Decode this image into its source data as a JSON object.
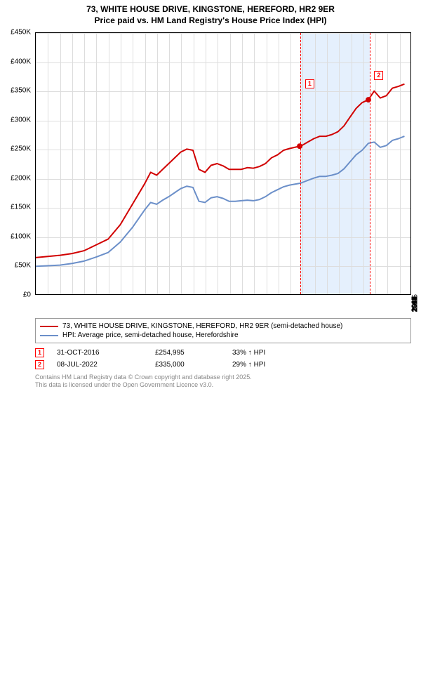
{
  "title_line1": "73, WHITE HOUSE DRIVE, KINGSTONE, HEREFORD, HR2 9ER",
  "title_line2": "Price paid vs. HM Land Registry's House Price Index (HPI)",
  "chart": {
    "type": "line",
    "background_color": "#ffffff",
    "grid_color": "#dddddd",
    "border_color": "#000000",
    "highlight_band_color": "rgba(223,236,252,0.8)",
    "yaxis": {
      "min": 0,
      "max": 450000,
      "step": 50000,
      "labels": [
        "£0",
        "£50K",
        "£100K",
        "£150K",
        "£200K",
        "£250K",
        "£300K",
        "£350K",
        "£400K",
        "£450K"
      ]
    },
    "xaxis": {
      "min": 1995,
      "max": 2026,
      "labels": [
        "1995",
        "1996",
        "1997",
        "1998",
        "1999",
        "2000",
        "2001",
        "2002",
        "2003",
        "2004",
        "2005",
        "2006",
        "2007",
        "2008",
        "2009",
        "2010",
        "2011",
        "2012",
        "2013",
        "2014",
        "2015",
        "2016",
        "2017",
        "2018",
        "2019",
        "2020",
        "2021",
        "2022",
        "2023",
        "2024",
        "2025"
      ]
    },
    "highlight_band": {
      "start_year": 2016.83,
      "end_year": 2022.52
    },
    "ref_lines": [
      {
        "year": 2016.83
      },
      {
        "year": 2022.52
      }
    ],
    "series": [
      {
        "name": "property",
        "color": "#d10000",
        "width": 2,
        "points": [
          [
            1995,
            63000
          ],
          [
            1996,
            65000
          ],
          [
            1997,
            67000
          ],
          [
            1998,
            70000
          ],
          [
            1999,
            75000
          ],
          [
            2000,
            85000
          ],
          [
            2001,
            95000
          ],
          [
            2002,
            120000
          ],
          [
            2003,
            155000
          ],
          [
            2004,
            190000
          ],
          [
            2004.5,
            210000
          ],
          [
            2005,
            205000
          ],
          [
            2005.5,
            215000
          ],
          [
            2006,
            225000
          ],
          [
            2006.5,
            235000
          ],
          [
            2007,
            245000
          ],
          [
            2007.5,
            250000
          ],
          [
            2008,
            248000
          ],
          [
            2008.5,
            215000
          ],
          [
            2009,
            210000
          ],
          [
            2009.5,
            222000
          ],
          [
            2010,
            225000
          ],
          [
            2010.5,
            221000
          ],
          [
            2011,
            215000
          ],
          [
            2011.5,
            215000
          ],
          [
            2012,
            215000
          ],
          [
            2012.5,
            218000
          ],
          [
            2013,
            217000
          ],
          [
            2013.5,
            220000
          ],
          [
            2014,
            225000
          ],
          [
            2014.5,
            235000
          ],
          [
            2015,
            240000
          ],
          [
            2015.5,
            248000
          ],
          [
            2016,
            251000
          ],
          [
            2016.83,
            254995
          ],
          [
            2017,
            256000
          ],
          [
            2017.5,
            262000
          ],
          [
            2018,
            268000
          ],
          [
            2018.5,
            272000
          ],
          [
            2019,
            272000
          ],
          [
            2019.5,
            275000
          ],
          [
            2020,
            280000
          ],
          [
            2020.5,
            290000
          ],
          [
            2021,
            305000
          ],
          [
            2021.5,
            320000
          ],
          [
            2022,
            330000
          ],
          [
            2022.52,
            335000
          ],
          [
            2023,
            350000
          ],
          [
            2023.5,
            338000
          ],
          [
            2024,
            342000
          ],
          [
            2024.5,
            355000
          ],
          [
            2025,
            358000
          ],
          [
            2025.5,
            362000
          ]
        ]
      },
      {
        "name": "hpi",
        "color": "#6b8fc9",
        "width": 2,
        "points": [
          [
            1995,
            48000
          ],
          [
            1996,
            49000
          ],
          [
            1997,
            50000
          ],
          [
            1998,
            53000
          ],
          [
            1999,
            57000
          ],
          [
            2000,
            64000
          ],
          [
            2001,
            72000
          ],
          [
            2002,
            90000
          ],
          [
            2003,
            115000
          ],
          [
            2004,
            145000
          ],
          [
            2004.5,
            158000
          ],
          [
            2005,
            155000
          ],
          [
            2005.5,
            162000
          ],
          [
            2006,
            168000
          ],
          [
            2006.5,
            175000
          ],
          [
            2007,
            182000
          ],
          [
            2007.5,
            186000
          ],
          [
            2008,
            184000
          ],
          [
            2008.5,
            160000
          ],
          [
            2009,
            158000
          ],
          [
            2009.5,
            166000
          ],
          [
            2010,
            168000
          ],
          [
            2010.5,
            165000
          ],
          [
            2011,
            160000
          ],
          [
            2011.5,
            160000
          ],
          [
            2012,
            161000
          ],
          [
            2012.5,
            162000
          ],
          [
            2013,
            161000
          ],
          [
            2013.5,
            163000
          ],
          [
            2014,
            168000
          ],
          [
            2014.5,
            175000
          ],
          [
            2015,
            180000
          ],
          [
            2015.5,
            185000
          ],
          [
            2016,
            188000
          ],
          [
            2016.83,
            191000
          ],
          [
            2017,
            192000
          ],
          [
            2017.5,
            196000
          ],
          [
            2018,
            200000
          ],
          [
            2018.5,
            203000
          ],
          [
            2019,
            203000
          ],
          [
            2019.5,
            205000
          ],
          [
            2020,
            208000
          ],
          [
            2020.5,
            216000
          ],
          [
            2021,
            228000
          ],
          [
            2021.5,
            240000
          ],
          [
            2022,
            248000
          ],
          [
            2022.52,
            260000
          ],
          [
            2023,
            262000
          ],
          [
            2023.5,
            253000
          ],
          [
            2024,
            256000
          ],
          [
            2024.5,
            265000
          ],
          [
            2025,
            268000
          ],
          [
            2025.5,
            272000
          ]
        ]
      }
    ],
    "markers": [
      {
        "id": "1",
        "year": 2016.83,
        "value": 254995
      },
      {
        "id": "2",
        "year": 2022.52,
        "value": 335000
      }
    ],
    "marker_label_boxes": [
      {
        "id": "1",
        "year": 2017.2,
        "value": 370000
      },
      {
        "id": "2",
        "year": 2022.9,
        "value": 385000
      }
    ]
  },
  "legend": {
    "items": [
      {
        "color": "#d10000",
        "label": "73, WHITE HOUSE DRIVE, KINGSTONE, HEREFORD, HR2 9ER (semi-detached house)"
      },
      {
        "color": "#6b8fc9",
        "label": "HPI: Average price, semi-detached house, Herefordshire"
      }
    ]
  },
  "transactions": [
    {
      "id": "1",
      "date": "31-OCT-2016",
      "price": "£254,995",
      "pct": "33% ↑ HPI"
    },
    {
      "id": "2",
      "date": "08-JUL-2022",
      "price": "£335,000",
      "pct": "29% ↑ HPI"
    }
  ],
  "footer_line1": "Contains HM Land Registry data © Crown copyright and database right 2025.",
  "footer_line2": "This data is licensed under the Open Government Licence v3.0."
}
